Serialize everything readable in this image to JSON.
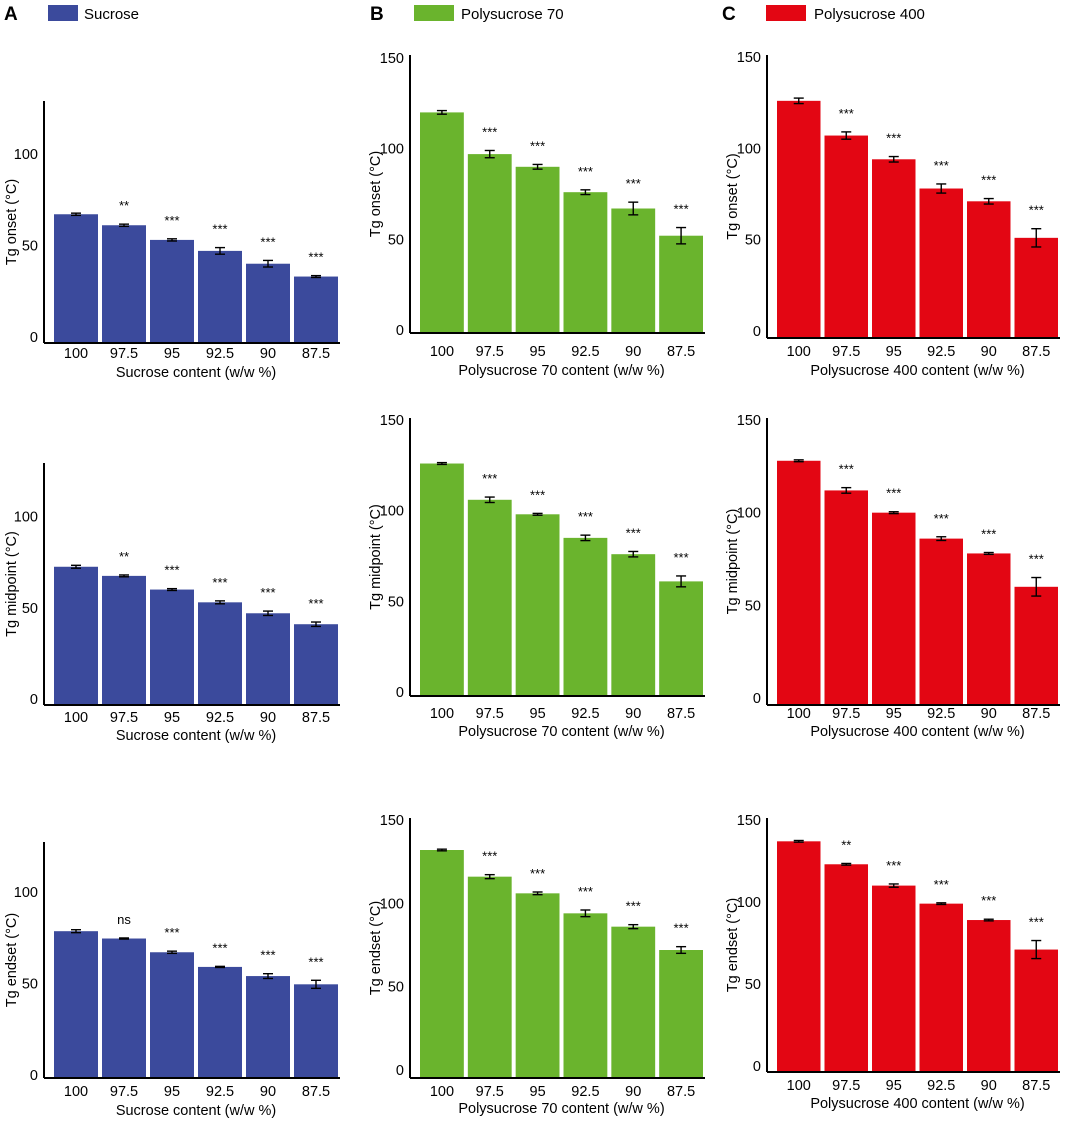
{
  "panels": [
    {
      "letter": "A",
      "legend": "Sucrose",
      "color": "#3b4a9c"
    },
    {
      "letter": "B",
      "legend": "Polysucrose 70",
      "color": "#6ab42d"
    },
    {
      "letter": "C",
      "legend": "Polysucrose 400",
      "color": "#e30613"
    }
  ],
  "chart_data": [
    {
      "type": "bar",
      "panel": "A",
      "row": "onset",
      "color": "#3b4a9c",
      "xlabel": "Sucrose content (w/w %)",
      "ylabel": "Tg onset (°C)",
      "categories": [
        "100",
        "97.5",
        "95",
        "92.5",
        "90",
        "87.5"
      ],
      "values": [
        67,
        61,
        53,
        47,
        40,
        33
      ],
      "errors": [
        0.6,
        0.6,
        0.6,
        1.8,
        1.8,
        0.5
      ],
      "significance": [
        "",
        "**",
        "***",
        "***",
        "***",
        "***"
      ],
      "yticks": [
        0,
        50,
        100
      ],
      "ylim": [
        0,
        125
      ]
    },
    {
      "type": "bar",
      "panel": "A",
      "row": "midpoint",
      "color": "#3b4a9c",
      "xlabel": "Sucrose content (w/w %)",
      "ylabel": "Tg midpoint (°C)",
      "categories": [
        "100",
        "97.5",
        "95",
        "92.5",
        "90",
        "87.5"
      ],
      "values": [
        72.5,
        67.5,
        60,
        53,
        47,
        41
      ],
      "errors": [
        0.8,
        0.5,
        0.5,
        0.8,
        1.2,
        1.2
      ],
      "significance": [
        "",
        "**",
        "***",
        "***",
        "***",
        "***"
      ],
      "yticks": [
        0,
        50,
        100
      ],
      "ylim": [
        0,
        125
      ]
    },
    {
      "type": "bar",
      "panel": "A",
      "row": "endset",
      "color": "#3b4a9c",
      "xlabel": "Sucrose content (w/w %)",
      "ylabel": "Tg endset (°C)",
      "categories": [
        "100",
        "97.5",
        "95",
        "92.5",
        "90",
        "87.5"
      ],
      "values": [
        78.5,
        74.5,
        67,
        59,
        54,
        49.5
      ],
      "errors": [
        0.8,
        0.3,
        0.6,
        0.3,
        1.3,
        2.2
      ],
      "significance": [
        "",
        "ns",
        "***",
        "***",
        "***",
        "***"
      ],
      "yticks": [
        0,
        50,
        100
      ],
      "ylim": [
        0,
        125
      ]
    },
    {
      "type": "bar",
      "panel": "B",
      "row": "onset",
      "color": "#6ab42d",
      "xlabel": "Polysucrose 70 content (w/w %)",
      "ylabel": "Tg onset (°C)",
      "categories": [
        "100",
        "97.5",
        "95",
        "92.5",
        "90",
        "87.5"
      ],
      "values": [
        120,
        97,
        90,
        76,
        67,
        52
      ],
      "errors": [
        1,
        2,
        1.3,
        1.3,
        3.5,
        4.5
      ],
      "significance": [
        "",
        "***",
        "***",
        "***",
        "***",
        "***"
      ],
      "yticks": [
        0,
        50,
        100,
        150
      ],
      "ylim": [
        0,
        150
      ]
    },
    {
      "type": "bar",
      "panel": "B",
      "row": "midpoint",
      "color": "#6ab42d",
      "xlabel": "Polysucrose 70 content (w/w %)",
      "ylabel": "Tg midpoint (°C)",
      "categories": [
        "100",
        "97.5",
        "95",
        "92.5",
        "90",
        "87.5"
      ],
      "values": [
        126,
        106,
        98,
        85,
        76,
        61
      ],
      "errors": [
        0.5,
        1.5,
        0.5,
        1.5,
        1.5,
        3
      ],
      "significance": [
        "",
        "***",
        "***",
        "***",
        "***",
        "***"
      ],
      "yticks": [
        0,
        50,
        100,
        150
      ],
      "ylim": [
        0,
        150
      ]
    },
    {
      "type": "bar",
      "panel": "B",
      "row": "endset",
      "color": "#6ab42d",
      "xlabel": "Polysucrose 70 content (w/w %)",
      "ylabel": "Tg endset (°C)",
      "categories": [
        "100",
        "97.5",
        "95",
        "92.5",
        "90",
        "87.5"
      ],
      "values": [
        132,
        116,
        106,
        94,
        86,
        72
      ],
      "errors": [
        0.5,
        1.2,
        0.8,
        2,
        1.2,
        2
      ],
      "significance": [
        "",
        "***",
        "***",
        "***",
        "***",
        "***"
      ],
      "yticks": [
        0,
        50,
        100,
        150
      ],
      "ylim": [
        0,
        150
      ]
    },
    {
      "type": "bar",
      "panel": "C",
      "row": "onset",
      "color": "#e30613",
      "xlabel": "Polysucrose 400 content (w/w %)",
      "ylabel": "Tg onset (°C)",
      "categories": [
        "100",
        "97.5",
        "95",
        "92.5",
        "90",
        "87.5"
      ],
      "values": [
        126,
        107,
        94,
        78,
        71,
        51
      ],
      "errors": [
        1.5,
        2,
        1.5,
        2.5,
        1.5,
        5
      ],
      "significance": [
        "",
        "***",
        "***",
        "***",
        "***",
        "***"
      ],
      "yticks": [
        0,
        50,
        100,
        150
      ],
      "ylim": [
        0,
        150
      ]
    },
    {
      "type": "bar",
      "panel": "C",
      "row": "midpoint",
      "color": "#e30613",
      "xlabel": "Polysucrose 400 content (w/w %)",
      "ylabel": "Tg midpoint (°C)",
      "categories": [
        "100",
        "97.5",
        "95",
        "92.5",
        "90",
        "87.5"
      ],
      "values": [
        128,
        112,
        100,
        86,
        78,
        60
      ],
      "errors": [
        0.5,
        1.5,
        0.5,
        1,
        0.5,
        5
      ],
      "significance": [
        "",
        "***",
        "***",
        "***",
        "***",
        "***"
      ],
      "yticks": [
        0,
        50,
        100,
        150
      ],
      "ylim": [
        0,
        150
      ]
    },
    {
      "type": "bar",
      "panel": "C",
      "row": "endset",
      "color": "#e30613",
      "xlabel": "Polysucrose 400 content (w/w %)",
      "ylabel": "Tg endset (°C)",
      "categories": [
        "100",
        "97.5",
        "95",
        "92.5",
        "90",
        "87.5"
      ],
      "values": [
        137,
        123,
        110,
        99,
        89,
        71
      ],
      "errors": [
        0.5,
        0.5,
        1,
        0.5,
        0.5,
        5.5
      ],
      "significance": [
        "",
        "**",
        "***",
        "***",
        "***",
        "***"
      ],
      "yticks": [
        0,
        50,
        100,
        150
      ],
      "ylim": [
        0,
        150
      ]
    }
  ]
}
